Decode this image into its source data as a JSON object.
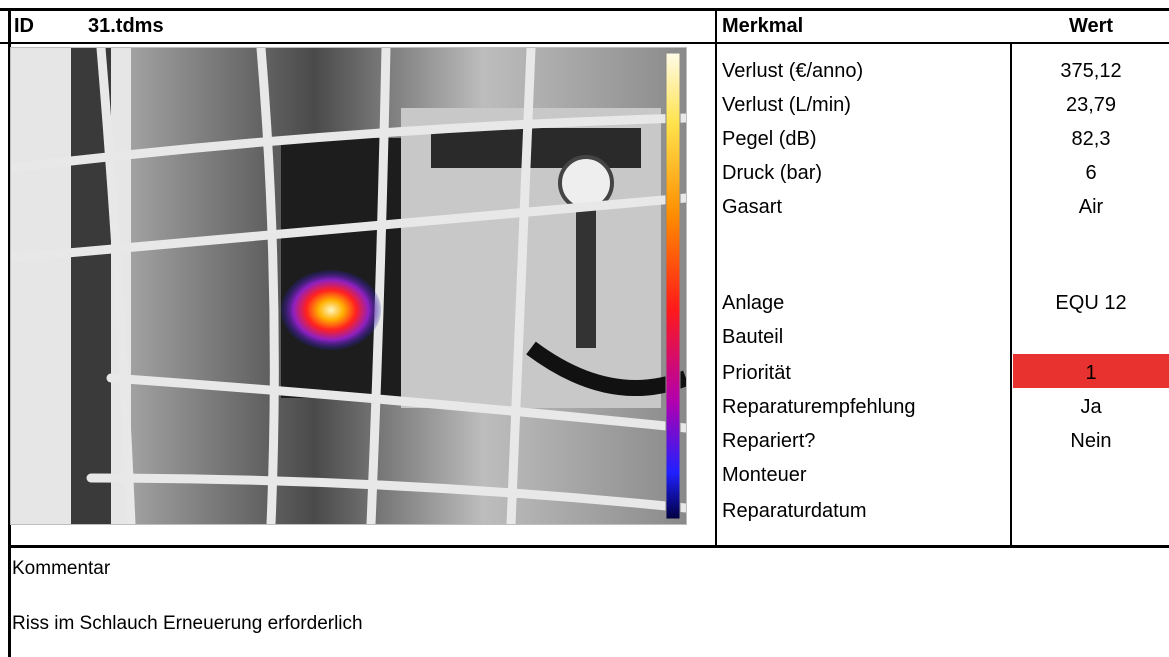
{
  "header": {
    "id_label": "ID",
    "file_name": "31.tdms",
    "feature_header": "Merkmal",
    "value_header": "Wert"
  },
  "rows": [
    {
      "label": "Verlust (€/anno)",
      "value": "375,12"
    },
    {
      "label": "Verlust (L/min)",
      "value": "23,79"
    },
    {
      "label": "Pegel (dB)",
      "value": "82,3"
    },
    {
      "label": "Druck (bar)",
      "value": "6"
    },
    {
      "label": "Gasart",
      "value": "Air"
    },
    {
      "label": "",
      "value": ""
    },
    {
      "label": "Anlage",
      "value": "EQU 12"
    },
    {
      "label": "Bauteil",
      "value": ""
    },
    {
      "label": "Priorität",
      "value": "1"
    },
    {
      "label": "Reparaturempfehlung",
      "value": "Ja"
    },
    {
      "label": "Repariert?",
      "value": "Nein"
    },
    {
      "label": "Monteuer",
      "value": ""
    },
    {
      "label": "Reparaturdatum",
      "value": ""
    }
  ],
  "priority_color": "#e8322f",
  "comment": {
    "label": "Kommentar",
    "text": "Riss im Schlauch Erneuerung erforderlich"
  }
}
